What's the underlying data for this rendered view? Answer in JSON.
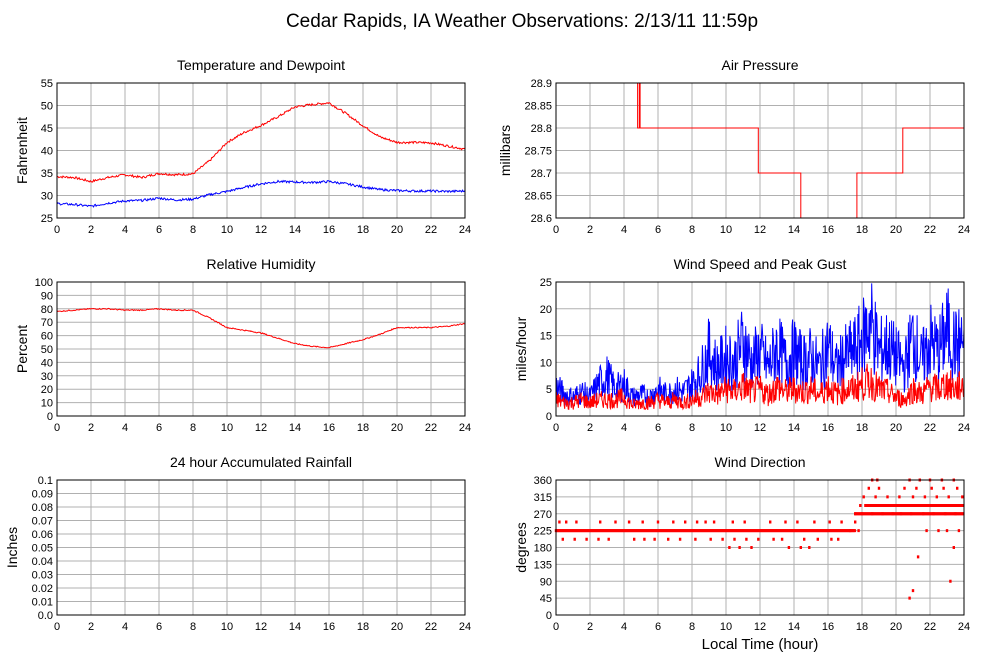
{
  "title": "Cedar Rapids, IA Weather Observations: 2/13/11 11:59p",
  "x_axis_label": "Local Time (hour)",
  "colors": {
    "red": "#ff0000",
    "blue": "#0000ff",
    "grid": "#b0b0b0"
  },
  "chart_data": [
    {
      "id": "temp",
      "type": "line",
      "title": "Temperature and Dewpoint",
      "ylabel": "Fahrenheit",
      "xlim": [
        0,
        24
      ],
      "ylim": [
        25,
        55
      ],
      "xticks": [
        0,
        2,
        4,
        6,
        8,
        10,
        12,
        14,
        16,
        18,
        20,
        22,
        24
      ],
      "yticks": [
        25,
        30,
        35,
        40,
        45,
        50,
        55
      ],
      "grid": true,
      "series": [
        {
          "color": "#ff0000",
          "x": [
            0,
            1,
            2,
            3,
            4,
            5,
            6,
            7,
            8,
            9,
            10,
            11,
            12,
            13,
            14,
            15,
            16,
            17,
            18,
            19,
            20,
            21,
            22,
            23,
            24
          ],
          "y": [
            34.2,
            34.0,
            33.1,
            34.0,
            34.6,
            34.0,
            34.9,
            34.6,
            34.8,
            37.8,
            41.8,
            44.0,
            45.6,
            47.5,
            49.7,
            50.2,
            50.6,
            48.2,
            45.5,
            43.0,
            41.8,
            41.8,
            41.7,
            41.0,
            40.3
          ]
        },
        {
          "color": "#0000ff",
          "x": [
            0,
            1,
            2,
            3,
            4,
            5,
            6,
            7,
            8,
            9,
            10,
            11,
            12,
            13,
            14,
            15,
            16,
            17,
            18,
            19,
            20,
            21,
            22,
            23,
            24
          ],
          "y": [
            28.2,
            28.0,
            27.6,
            28.3,
            28.8,
            28.9,
            29.4,
            29.0,
            29.2,
            30.2,
            30.9,
            31.8,
            32.6,
            33.1,
            33.0,
            32.9,
            33.1,
            32.6,
            31.9,
            31.3,
            31.1,
            31.0,
            31.0,
            30.9,
            31.0
          ]
        }
      ]
    },
    {
      "id": "pressure",
      "type": "line",
      "title": "Air Pressure",
      "ylabel": "millibars",
      "xlim": [
        0,
        24
      ],
      "ylim": [
        28.6,
        28.9
      ],
      "xticks": [
        0,
        2,
        4,
        6,
        8,
        10,
        12,
        14,
        16,
        18,
        20,
        22,
        24
      ],
      "yticks": [
        28.6,
        28.65,
        28.7,
        28.75,
        28.8,
        28.85,
        28.9
      ],
      "ytick_labels": [
        "28.6",
        "28.65",
        "28.7",
        "28.75",
        "28.8",
        "28.85",
        "28.9"
      ],
      "grid": true,
      "series": [
        {
          "color": "#ff0000",
          "x": [
            0,
            4.8,
            4.8,
            4.9,
            4.9,
            4.95,
            4.95,
            5.0,
            5.0,
            11.9,
            11.9,
            14.4,
            14.4,
            14.5,
            14.5,
            17.7,
            17.7,
            20.4,
            20.4,
            24
          ],
          "y": [
            28.9,
            28.9,
            28.8,
            28.8,
            28.9,
            28.9,
            28.8,
            28.8,
            28.8,
            28.8,
            28.7,
            28.7,
            28.6,
            28.6,
            28.6,
            28.6,
            28.7,
            28.7,
            28.8,
            28.8
          ]
        }
      ]
    },
    {
      "id": "humidity",
      "type": "line",
      "title": "Relative Humidity",
      "ylabel": "Percent",
      "xlim": [
        0,
        24
      ],
      "ylim": [
        0,
        100
      ],
      "xticks": [
        0,
        2,
        4,
        6,
        8,
        10,
        12,
        14,
        16,
        18,
        20,
        22,
        24
      ],
      "yticks": [
        0,
        10,
        20,
        30,
        40,
        50,
        60,
        70,
        80,
        90,
        100
      ],
      "grid": true,
      "series": [
        {
          "color": "#ff0000",
          "x": [
            0,
            1,
            2,
            3,
            4,
            5,
            6,
            7,
            8,
            9,
            10,
            11,
            12,
            13,
            14,
            15,
            16,
            17,
            18,
            19,
            20,
            21,
            22,
            23,
            24
          ],
          "y": [
            78,
            79,
            80,
            80,
            79,
            79,
            80,
            79,
            79,
            73,
            66,
            64,
            62,
            58,
            54,
            52,
            51,
            54,
            57,
            61,
            66,
            66,
            66,
            67,
            69
          ]
        }
      ]
    },
    {
      "id": "wind",
      "type": "line",
      "title": "Wind Speed and Peak Gust",
      "ylabel": "miles/hour",
      "xlim": [
        0,
        24
      ],
      "ylim": [
        0,
        25
      ],
      "xticks": [
        0,
        2,
        4,
        6,
        8,
        10,
        12,
        14,
        16,
        18,
        20,
        22,
        24
      ],
      "yticks": [
        0,
        5,
        10,
        15,
        20,
        25
      ],
      "grid": true,
      "series": [
        {
          "color": "#0000ff",
          "x": [
            0,
            0.5,
            1,
            1.5,
            2,
            2.5,
            3,
            3.5,
            4,
            4.5,
            5,
            5.5,
            6,
            6.5,
            7,
            7.5,
            8,
            8.5,
            9,
            9.5,
            10,
            10.5,
            11,
            11.5,
            12,
            12.5,
            13,
            13.5,
            14,
            14.5,
            15,
            15.5,
            16,
            16.5,
            17,
            17.5,
            18,
            18.5,
            19,
            19.5,
            20,
            20.5,
            21,
            21.5,
            22,
            22.5,
            23,
            23.5,
            24
          ],
          "y": [
            5.5,
            4,
            3.5,
            4.5,
            3.5,
            6,
            7.5,
            5,
            6,
            3.5,
            4,
            3.5,
            5,
            4,
            5,
            4.5,
            6,
            8,
            12,
            9,
            11,
            10,
            14,
            10,
            12,
            9,
            13,
            10,
            12,
            10,
            11,
            9,
            13,
            9,
            11,
            12,
            14,
            18,
            12,
            13,
            11,
            9,
            15,
            10,
            14,
            12,
            16,
            13,
            14
          ]
        },
        {
          "color": "#ff0000",
          "x": [
            0,
            0.5,
            1,
            1.5,
            2,
            2.5,
            3,
            3.5,
            4,
            4.5,
            5,
            5.5,
            6,
            6.5,
            7,
            7.5,
            8,
            8.5,
            9,
            9.5,
            10,
            10.5,
            11,
            11.5,
            12,
            12.5,
            13,
            13.5,
            14,
            14.5,
            15,
            15.5,
            16,
            16.5,
            17,
            17.5,
            18,
            18.5,
            19,
            19.5,
            20,
            20.5,
            21,
            21.5,
            22,
            22.5,
            23,
            23.5,
            24
          ],
          "y": [
            3,
            2.5,
            2.5,
            3,
            2.5,
            3,
            3,
            3,
            3.5,
            2,
            2.5,
            2.5,
            3,
            2.5,
            3,
            2.5,
            3,
            3.5,
            4.5,
            4,
            5,
            4.5,
            5.5,
            4.5,
            5,
            4,
            5.5,
            4.5,
            5,
            4.5,
            5,
            4,
            5.5,
            4,
            5,
            5,
            6,
            6.5,
            5,
            4.5,
            3.5,
            3,
            5,
            4,
            5.5,
            5,
            6,
            5,
            6
          ]
        }
      ]
    },
    {
      "id": "rain",
      "type": "line",
      "title": "24 hour Accumulated Rainfall",
      "ylabel": "Inches",
      "xlim": [
        0,
        24
      ],
      "ylim": [
        0,
        0.1
      ],
      "xticks": [
        0,
        2,
        4,
        6,
        8,
        10,
        12,
        14,
        16,
        18,
        20,
        22,
        24
      ],
      "yticks": [
        0,
        0.01,
        0.02,
        0.03,
        0.04,
        0.05,
        0.06,
        0.07,
        0.08,
        0.09,
        0.1
      ],
      "ytick_labels": [
        "0.0",
        "0.01",
        "0.02",
        "0.03",
        "0.04",
        "0.05",
        "0.06",
        "0.07",
        "0.08",
        "0.09",
        "0.1"
      ],
      "grid": true,
      "series": [
        {
          "color": "#ff0000",
          "x": [
            0,
            24
          ],
          "y": [
            0,
            0
          ]
        }
      ]
    },
    {
      "id": "direction",
      "type": "scatter",
      "title": "Wind Direction",
      "ylabel": "degrees",
      "xlabel": "Local Time (hour)",
      "xlim": [
        0,
        24
      ],
      "ylim": [
        0,
        360
      ],
      "xticks": [
        0,
        2,
        4,
        6,
        8,
        10,
        12,
        14,
        16,
        18,
        20,
        22,
        24
      ],
      "yticks": [
        0,
        45,
        90,
        135,
        180,
        225,
        270,
        315,
        360
      ],
      "grid": true,
      "series": [
        {
          "color": "#ff0000",
          "points": [
            [
              0.2,
              248
            ],
            [
              0.6,
              248
            ],
            [
              1.2,
              248
            ],
            [
              2.6,
              248
            ],
            [
              3.5,
              248
            ],
            [
              4.3,
              248
            ],
            [
              5.1,
              248
            ],
            [
              6.0,
              248
            ],
            [
              6.9,
              248
            ],
            [
              7.6,
              248
            ],
            [
              8.3,
              248
            ],
            [
              8.8,
              248
            ],
            [
              9.3,
              248
            ],
            [
              10.4,
              248
            ],
            [
              11.1,
              248
            ],
            [
              12.6,
              248
            ],
            [
              13.5,
              248
            ],
            [
              14.2,
              248
            ],
            [
              15.2,
              248
            ],
            [
              16.1,
              248
            ],
            [
              16.8,
              248
            ],
            [
              0.4,
              202
            ],
            [
              1.1,
              202
            ],
            [
              1.8,
              202
            ],
            [
              2.5,
              202
            ],
            [
              3.1,
              202
            ],
            [
              4.6,
              202
            ],
            [
              5.2,
              202
            ],
            [
              5.8,
              202
            ],
            [
              6.6,
              202
            ],
            [
              7.3,
              202
            ],
            [
              8.2,
              202
            ],
            [
              9.1,
              202
            ],
            [
              9.8,
              202
            ],
            [
              10.5,
              202
            ],
            [
              11.2,
              202
            ],
            [
              11.9,
              202
            ],
            [
              12.8,
              202
            ],
            [
              13.3,
              202
            ],
            [
              14.6,
              202
            ],
            [
              15.4,
              202
            ],
            [
              16.2,
              202
            ],
            [
              16.6,
              202
            ],
            [
              10.2,
              180
            ],
            [
              10.8,
              180
            ],
            [
              11.5,
              180
            ],
            [
              13.7,
              180
            ],
            [
              14.4,
              180
            ],
            [
              14.9,
              180
            ],
            [
              17.6,
              270
            ],
            [
              18.0,
              270
            ],
            [
              18.6,
              270
            ],
            [
              19.2,
              270
            ],
            [
              19.8,
              270
            ],
            [
              20.3,
              270
            ],
            [
              20.9,
              270
            ],
            [
              21.6,
              270
            ],
            [
              22.2,
              270
            ],
            [
              22.9,
              270
            ],
            [
              23.5,
              270
            ],
            [
              17.9,
              292
            ],
            [
              18.5,
              292
            ],
            [
              19.4,
              292
            ],
            [
              20.0,
              292
            ],
            [
              20.7,
              292
            ],
            [
              21.3,
              292
            ],
            [
              21.9,
              292
            ],
            [
              22.6,
              292
            ],
            [
              23.3,
              292
            ],
            [
              23.8,
              292
            ],
            [
              18.1,
              315
            ],
            [
              18.8,
              315
            ],
            [
              19.5,
              315
            ],
            [
              20.2,
              315
            ],
            [
              21.0,
              315
            ],
            [
              21.7,
              315
            ],
            [
              22.4,
              315
            ],
            [
              23.1,
              315
            ],
            [
              23.9,
              315
            ],
            [
              18.4,
              338
            ],
            [
              19.0,
              338
            ],
            [
              20.5,
              338
            ],
            [
              21.2,
              338
            ],
            [
              22.1,
              338
            ],
            [
              22.8,
              338
            ],
            [
              23.6,
              338
            ],
            [
              18.6,
              360
            ],
            [
              18.9,
              360
            ],
            [
              20.8,
              360
            ],
            [
              21.4,
              360
            ],
            [
              22.0,
              360
            ],
            [
              22.7,
              360
            ],
            [
              23.4,
              360
            ],
            [
              20.8,
              45
            ],
            [
              21.0,
              65
            ],
            [
              21.3,
              155
            ],
            [
              21.8,
              225
            ],
            [
              22.5,
              225
            ],
            [
              23.0,
              225
            ],
            [
              23.2,
              90
            ],
            [
              23.4,
              180
            ],
            [
              23.7,
              225
            ],
            [
              17.3,
              225
            ],
            [
              17.6,
              248
            ],
            [
              17.8,
              225
            ]
          ],
          "bands": [
            {
              "y": 225,
              "x0": 0,
              "x1": 17.6
            },
            {
              "y": 270,
              "x0": 17.6,
              "x1": 24
            },
            {
              "y": 292,
              "x0": 18.2,
              "x1": 24
            }
          ]
        }
      ]
    }
  ]
}
